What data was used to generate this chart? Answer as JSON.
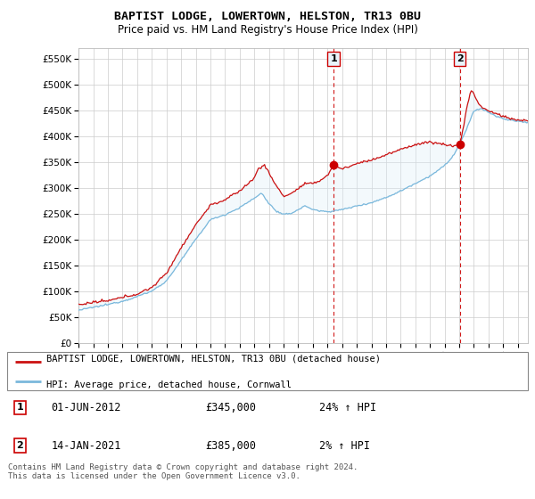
{
  "title": "BAPTIST LODGE, LOWERTOWN, HELSTON, TR13 0BU",
  "subtitle": "Price paid vs. HM Land Registry's House Price Index (HPI)",
  "legend_line1": "BAPTIST LODGE, LOWERTOWN, HELSTON, TR13 0BU (detached house)",
  "legend_line2": "HPI: Average price, detached house, Cornwall",
  "annotation1": {
    "label": "1",
    "date": "01-JUN-2012",
    "price": "£345,000",
    "hpi": "24% ↑ HPI"
  },
  "annotation2": {
    "label": "2",
    "date": "14-JAN-2021",
    "price": "£385,000",
    "hpi": "2% ↑ HPI"
  },
  "footer": "Contains HM Land Registry data © Crown copyright and database right 2024.\nThis data is licensed under the Open Government Licence v3.0.",
  "hpi_color": "#7ab8dc",
  "price_color": "#cc1111",
  "marker_color": "#cc0000",
  "vline_color": "#cc0000",
  "fill_color": "#ddeef8",
  "annotation_fill": "#e8f4fc",
  "ylim": [
    0,
    570000
  ],
  "yticks": [
    0,
    50000,
    100000,
    150000,
    200000,
    250000,
    300000,
    350000,
    400000,
    450000,
    500000,
    550000
  ],
  "sale1_year": 2012.417,
  "sale1_price": 345000,
  "sale2_year": 2021.038,
  "sale2_price": 385000
}
